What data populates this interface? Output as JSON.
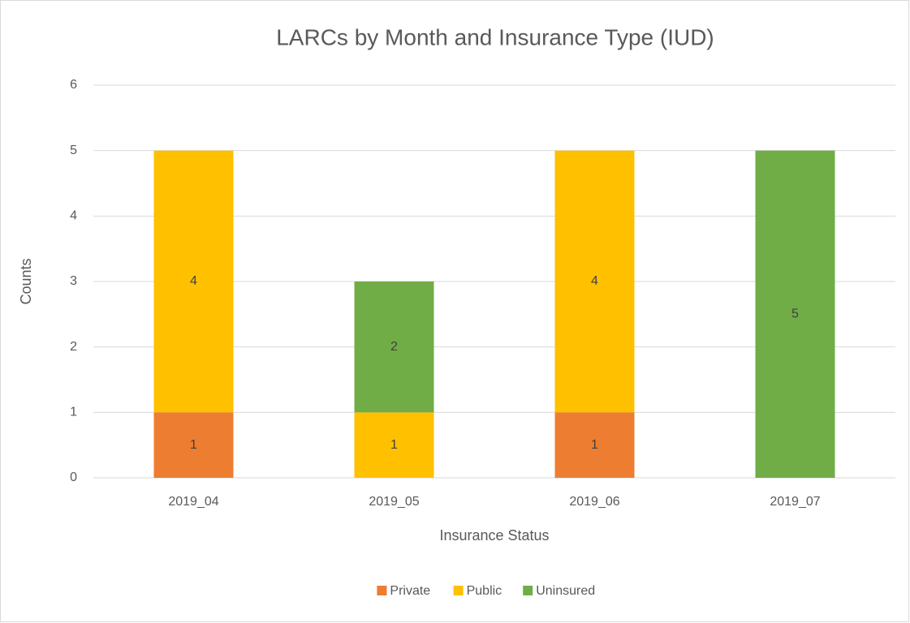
{
  "chart_data": {
    "type": "stacked_bar",
    "title": "LARCs by Month and Insurance Type (IUD)",
    "x_label": "Insurance Status",
    "y_label": "Counts",
    "categories": [
      "2019_04",
      "2019_05",
      "2019_06",
      "2019_07"
    ],
    "series": [
      {
        "name": "Private",
        "color": "#ed7d31",
        "values": [
          1,
          null,
          1,
          null
        ]
      },
      {
        "name": "Public",
        "color": "#ffc000",
        "values": [
          4,
          1,
          4,
          null
        ]
      },
      {
        "name": "Uninsured",
        "color": "#70ad47",
        "values": [
          null,
          2,
          null,
          5
        ]
      }
    ],
    "ylim": [
      0,
      6
    ],
    "yticks": [
      0,
      1,
      2,
      3,
      4,
      5,
      6
    ],
    "grid": true,
    "legend": "bottom",
    "data_labels": true
  }
}
